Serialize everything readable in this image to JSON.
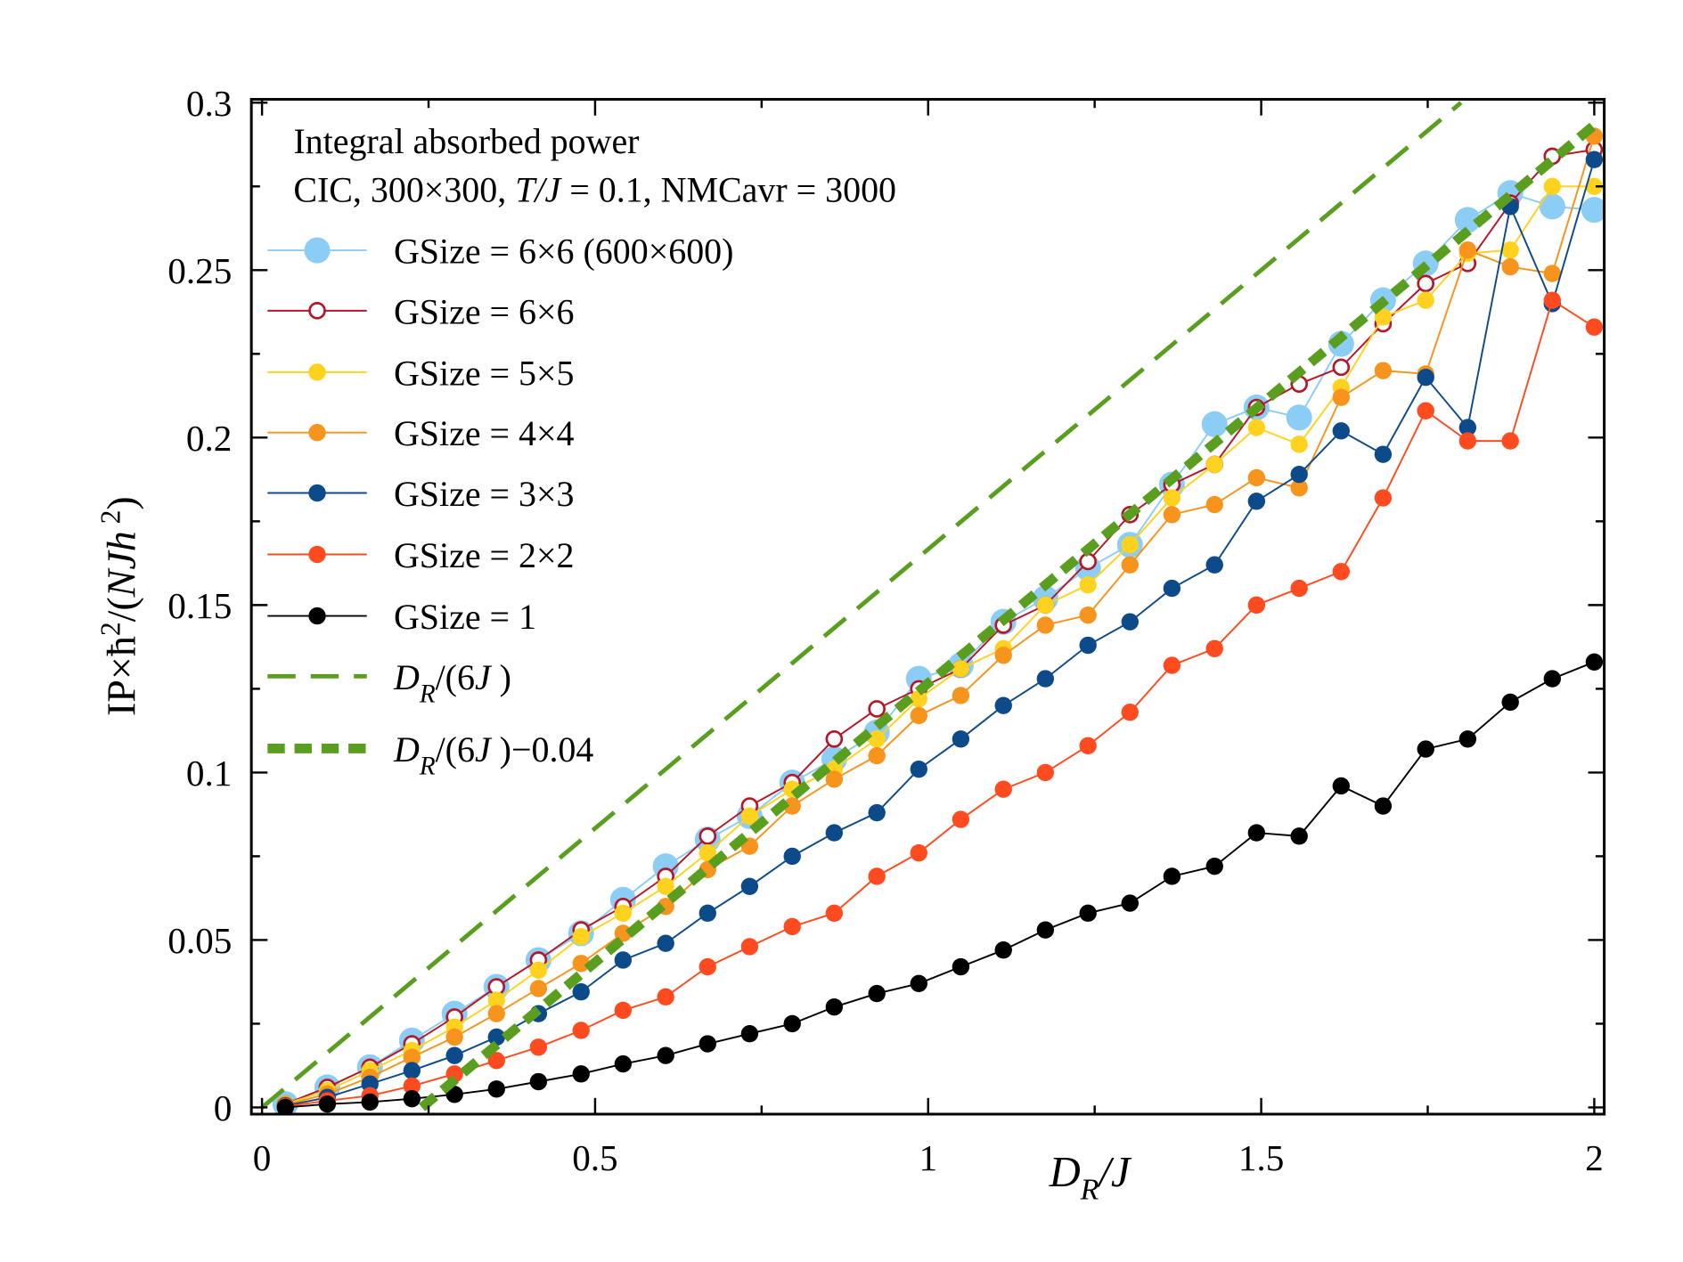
{
  "chart_data": {
    "type": "line",
    "xlabel": [
      "D",
      "R",
      "/J"
    ],
    "ylabel": [
      "IP×ħ",
      "2",
      "/(",
      "NJh",
      " 2",
      ")"
    ],
    "annotations": [
      [
        "Integral absorbed power"
      ],
      [
        "CIC, 300×300, ",
        "T/J",
        " = 0.1, NMCavr = 3000"
      ]
    ],
    "xlim": [
      -0.016,
      2.015
    ],
    "ylim": [
      -0.002,
      0.301
    ],
    "xticks": [
      0,
      0.5,
      1,
      1.5,
      2
    ],
    "xminorticks": [
      0.25,
      0.75,
      1.25,
      1.75
    ],
    "yticks": [
      0,
      0.05,
      0.1,
      0.15,
      0.2,
      0.25,
      0.3
    ],
    "yminorticks": [
      0.025,
      0.075,
      0.125,
      0.175,
      0.225,
      0.275
    ],
    "legend": "upper left",
    "x": [
      0.035,
      0.098,
      0.162,
      0.225,
      0.289,
      0.352,
      0.415,
      0.479,
      0.542,
      0.606,
      0.669,
      0.732,
      0.796,
      0.859,
      0.923,
      0.986,
      1.049,
      1.113,
      1.176,
      1.24,
      1.303,
      1.366,
      1.43,
      1.493,
      1.557,
      1.62,
      1.683,
      1.747,
      1.81,
      1.874,
      1.937,
      2.0
    ],
    "series": [
      {
        "name": "GSize = 6×6 (600×600)",
        "color": "#8ccdf5",
        "marker": "large-circle",
        "values": [
          0.001,
          0.006,
          0.012,
          0.02,
          0.028,
          0.036,
          0.044,
          0.052,
          0.062,
          0.072,
          0.08,
          0.087,
          0.097,
          0.104,
          0.112,
          0.128,
          0.132,
          0.145,
          0.152,
          0.161,
          0.168,
          0.186,
          0.204,
          0.209,
          0.206,
          0.228,
          0.241,
          0.252,
          0.265,
          0.273,
          0.269,
          0.268
        ]
      },
      {
        "name": "GSize = 6×6",
        "color": "#b5172a",
        "marker": "open-circle",
        "values": [
          0.001,
          0.006,
          0.012,
          0.019,
          0.027,
          0.036,
          0.044,
          0.053,
          0.06,
          0.069,
          0.081,
          0.09,
          0.097,
          0.11,
          0.119,
          0.125,
          0.131,
          0.144,
          0.15,
          0.163,
          0.177,
          0.186,
          0.192,
          0.209,
          0.216,
          0.221,
          0.234,
          0.246,
          0.252,
          0.27,
          0.284,
          0.286
        ]
      },
      {
        "name": "GSize = 5×5",
        "color": "#ffd21f",
        "marker": "circle",
        "values": [
          0.001,
          0.005,
          0.011,
          0.017,
          0.024,
          0.032,
          0.041,
          0.051,
          0.058,
          0.066,
          0.076,
          0.087,
          0.095,
          0.101,
          0.11,
          0.122,
          0.131,
          0.137,
          0.15,
          0.156,
          0.168,
          0.182,
          0.192,
          0.203,
          0.198,
          0.215,
          0.236,
          0.241,
          0.255,
          0.256,
          0.275,
          0.275
        ]
      },
      {
        "name": "GSize = 4×4",
        "color": "#f7941d",
        "marker": "circle",
        "values": [
          0.0008,
          0.004,
          0.009,
          0.015,
          0.021,
          0.028,
          0.0355,
          0.043,
          0.052,
          0.06,
          0.071,
          0.078,
          0.09,
          0.098,
          0.105,
          0.117,
          0.123,
          0.135,
          0.144,
          0.147,
          0.162,
          0.177,
          0.18,
          0.188,
          0.185,
          0.212,
          0.22,
          0.219,
          0.256,
          0.251,
          0.249,
          0.29
        ]
      },
      {
        "name": "GSize = 3×3",
        "color": "#0d4a8a",
        "marker": "circle",
        "values": [
          0.0005,
          0.003,
          0.007,
          0.011,
          0.0155,
          0.021,
          0.028,
          0.0345,
          0.044,
          0.049,
          0.058,
          0.066,
          0.075,
          0.082,
          0.088,
          0.101,
          0.11,
          0.12,
          0.128,
          0.138,
          0.145,
          0.155,
          0.162,
          0.181,
          0.189,
          0.202,
          0.195,
          0.218,
          0.203,
          0.269,
          0.24,
          0.283
        ]
      },
      {
        "name": "GSize = 2×2",
        "color": "#ff4b1f",
        "marker": "circle",
        "values": [
          0.0003,
          0.002,
          0.0035,
          0.0064,
          0.01,
          0.014,
          0.018,
          0.023,
          0.029,
          0.033,
          0.042,
          0.048,
          0.054,
          0.058,
          0.069,
          0.076,
          0.086,
          0.095,
          0.1,
          0.108,
          0.118,
          0.132,
          0.137,
          0.15,
          0.155,
          0.16,
          0.182,
          0.208,
          0.199,
          0.199,
          0.241,
          0.233
        ]
      },
      {
        "name": "GSize = 1",
        "color": "#000000",
        "marker": "circle",
        "values": [
          0.0,
          0.001,
          0.0016,
          0.0026,
          0.0039,
          0.0055,
          0.0077,
          0.01,
          0.013,
          0.0155,
          0.019,
          0.022,
          0.025,
          0.03,
          0.034,
          0.037,
          0.042,
          0.047,
          0.053,
          0.058,
          0.061,
          0.069,
          0.072,
          0.082,
          0.081,
          0.096,
          0.09,
          0.107,
          0.11,
          0.121,
          0.128,
          0.133
        ]
      },
      {
        "name": [
          "D",
          "R",
          "/(6",
          "J",
          " )"
        ],
        "color": "#5a9e1f",
        "marker": "none",
        "linestyle": "dashed",
        "x": [
          0,
          1.8
        ],
        "values": [
          0,
          0.3
        ]
      },
      {
        "name": [
          "D",
          "R",
          "/(6",
          "J",
          " )−0.04"
        ],
        "color": "#5a9e1f",
        "marker": "none",
        "linestyle": "thick-dashed",
        "x": [
          0.24,
          2.0
        ],
        "values": [
          0,
          0.2933
        ]
      }
    ]
  }
}
